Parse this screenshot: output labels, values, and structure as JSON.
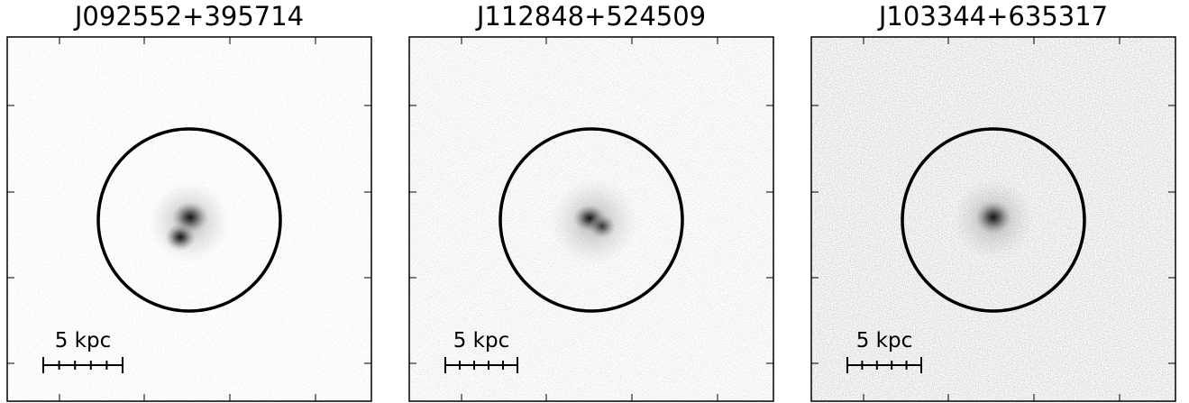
{
  "panels": [
    {
      "title": "J092552+395714",
      "scale_label": "5 kpc"
    },
    {
      "title": "J112848+524509",
      "scale_label": "5 kpc"
    },
    {
      "title": "J103344+635317",
      "scale_label": "5 kpc"
    }
  ]
}
